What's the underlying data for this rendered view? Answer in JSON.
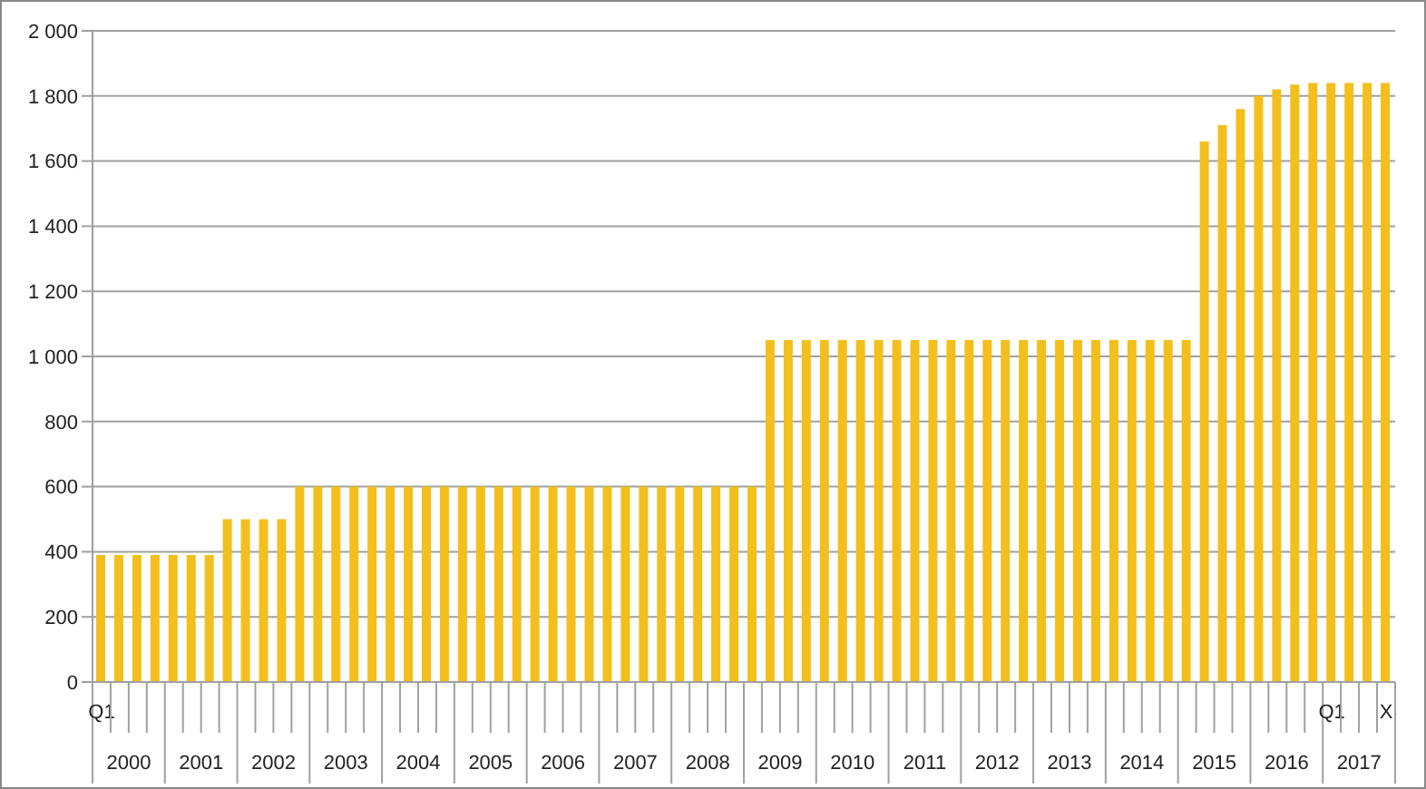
{
  "chart_data": {
    "type": "bar",
    "categories": [
      "Q1",
      null,
      null,
      null,
      null,
      null,
      null,
      null,
      null,
      null,
      null,
      null,
      null,
      null,
      null,
      null,
      null,
      null,
      null,
      null,
      null,
      null,
      null,
      null,
      null,
      null,
      null,
      null,
      null,
      null,
      null,
      null,
      null,
      null,
      null,
      null,
      null,
      null,
      null,
      null,
      null,
      null,
      null,
      null,
      null,
      null,
      null,
      null,
      null,
      null,
      null,
      null,
      null,
      null,
      null,
      null,
      null,
      null,
      null,
      null,
      null,
      null,
      null,
      null,
      null,
      null,
      null,
      null,
      "Q1",
      null,
      null,
      "X"
    ],
    "values": [
      390,
      390,
      390,
      390,
      390,
      390,
      390,
      500,
      500,
      500,
      500,
      600,
      600,
      600,
      600,
      600,
      600,
      600,
      600,
      600,
      600,
      600,
      600,
      600,
      600,
      600,
      600,
      600,
      600,
      600,
      600,
      600,
      600,
      600,
      600,
      600,
      600,
      1050,
      1050,
      1050,
      1050,
      1050,
      1050,
      1050,
      1050,
      1050,
      1050,
      1050,
      1050,
      1050,
      1050,
      1050,
      1050,
      1050,
      1050,
      1050,
      1050,
      1050,
      1050,
      1050,
      1050,
      1660,
      1710,
      1760,
      1800,
      1820,
      1835,
      1840,
      1840,
      1840,
      1840,
      1840
    ],
    "color": "#f2bf1c",
    "ylim": [
      0,
      2000
    ],
    "yticks": [
      0,
      200,
      400,
      600,
      800,
      {
        "value": 1000,
        "label": "1 000"
      },
      {
        "value": 1200,
        "label": "1 200"
      },
      {
        "value": 1400,
        "label": "1 400"
      },
      {
        "value": 1600,
        "label": "1 600"
      },
      {
        "value": 1800,
        "label": "1 800"
      },
      {
        "value": 2000,
        "label": "2 000"
      }
    ],
    "grid": "y",
    "annotations": [
      "2000",
      "2001",
      "2002",
      "2003",
      "2004",
      "2005",
      "2006",
      "2007",
      "2008",
      "2009",
      "2010",
      "2011",
      "2012",
      "2013",
      "2014",
      "2015",
      "2016",
      "2017"
    ]
  }
}
